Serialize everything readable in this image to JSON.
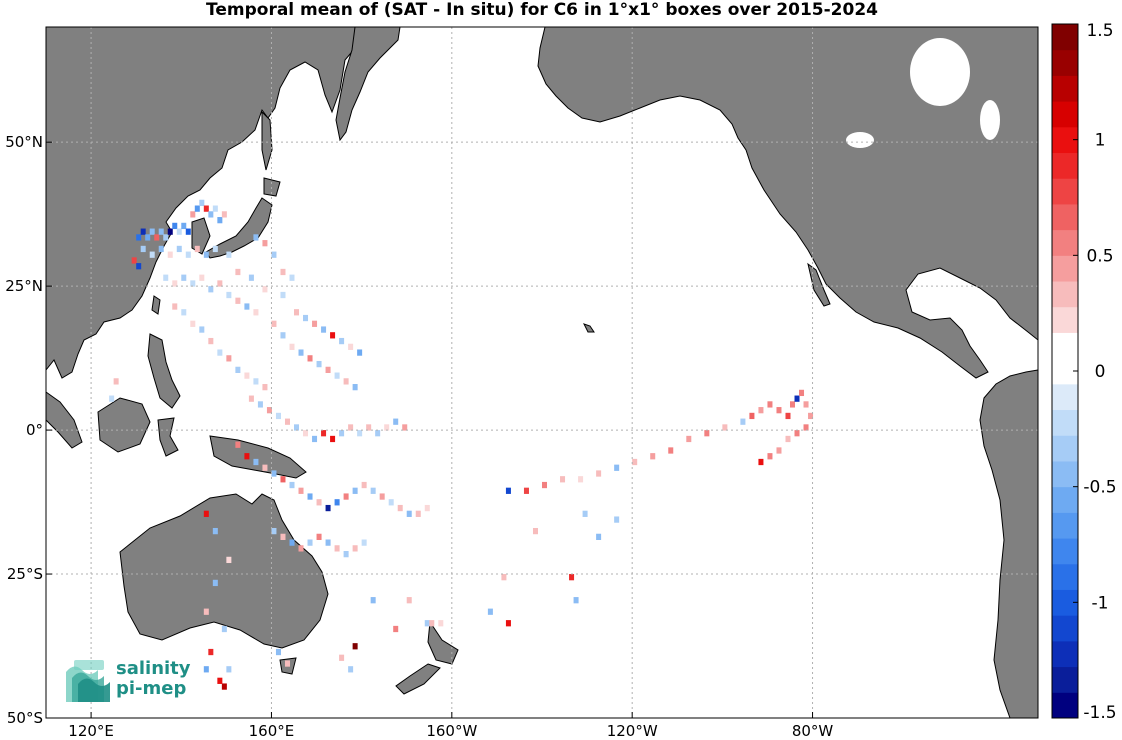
{
  "title": "Temporal mean of (SAT - In situ) for C6 in 1°x1° boxes over 2015-2024",
  "map": {
    "projection": "equirectangular",
    "lon_range": [
      110,
      330
    ],
    "lat_range": [
      -50,
      70
    ],
    "land_color": "#808080",
    "ocean_color": "#ffffff",
    "grid": "dotted"
  },
  "x_ticks": [
    {
      "lon": 120,
      "label": "120°E"
    },
    {
      "lon": 160,
      "label": "160°E"
    },
    {
      "lon": 200,
      "label": "160°W"
    },
    {
      "lon": 240,
      "label": "120°W"
    },
    {
      "lon": 280,
      "label": "80°W"
    }
  ],
  "y_ticks": [
    {
      "lat": 50,
      "label": "50°N"
    },
    {
      "lat": 25,
      "label": "25°N"
    },
    {
      "lat": 0,
      "label": "0°"
    },
    {
      "lat": -25,
      "label": "25°S"
    },
    {
      "lat": -50,
      "label": "50°S"
    }
  ],
  "colorbar": {
    "vmin": -1.5,
    "vmax": 1.5,
    "ticks": [
      {
        "value": 1.5,
        "label": "1.5"
      },
      {
        "value": 1,
        "label": "1"
      },
      {
        "value": 0.5,
        "label": "0.5"
      },
      {
        "value": 0,
        "label": "0"
      },
      {
        "value": -0.5,
        "label": "-0.5"
      },
      {
        "value": -1,
        "label": "-1"
      },
      {
        "value": -1.5,
        "label": "-1.5"
      }
    ],
    "colors": [
      "#00007f",
      "#0a1e9a",
      "#0d2fb8",
      "#1247d0",
      "#1a5ce0",
      "#2a71e8",
      "#3f86ee",
      "#5699f0",
      "#6eaaf2",
      "#8bbcf4",
      "#a6ccf6",
      "#c1dcf8",
      "#dceaf9",
      "#ffffff",
      "#ffffff",
      "#fad8d8",
      "#f7bcbc",
      "#f59e9e",
      "#f28080",
      "#ef6262",
      "#ee4444",
      "#ec2828",
      "#ea0f0f",
      "#d70000",
      "#b80000",
      "#990000",
      "#800000"
    ]
  },
  "chart_data": {
    "type": "heatmap",
    "title": "Temporal mean of (SAT - In situ) for C6 in 1°x1° boxes over 2015-2024",
    "units": "",
    "grid_cells": [
      {
        "lon": 130,
        "lat": 33,
        "v": -0.9
      },
      {
        "lon": 131,
        "lat": 34,
        "v": -1.2
      },
      {
        "lon": 132,
        "lat": 33,
        "v": -0.6
      },
      {
        "lon": 133,
        "lat": 34,
        "v": -0.4
      },
      {
        "lon": 134,
        "lat": 33,
        "v": 0.7
      },
      {
        "lon": 135,
        "lat": 34,
        "v": -0.5
      },
      {
        "lon": 136,
        "lat": 33,
        "v": -0.3
      },
      {
        "lon": 137,
        "lat": 34,
        "v": -1.4
      },
      {
        "lon": 138,
        "lat": 35,
        "v": -0.8
      },
      {
        "lon": 139,
        "lat": 34,
        "v": -0.2
      },
      {
        "lon": 140,
        "lat": 35,
        "v": -0.6
      },
      {
        "lon": 141,
        "lat": 34,
        "v": -1.0
      },
      {
        "lon": 142,
        "lat": 37,
        "v": 0.4
      },
      {
        "lon": 143,
        "lat": 38,
        "v": -0.7
      },
      {
        "lon": 144,
        "lat": 39,
        "v": -0.3
      },
      {
        "lon": 145,
        "lat": 38,
        "v": 0.9
      },
      {
        "lon": 146,
        "lat": 37,
        "v": -0.5
      },
      {
        "lon": 147,
        "lat": 38,
        "v": -0.2
      },
      {
        "lon": 148,
        "lat": 36,
        "v": -0.6
      },
      {
        "lon": 149,
        "lat": 37,
        "v": 0.3
      },
      {
        "lon": 131,
        "lat": 31,
        "v": -0.3
      },
      {
        "lon": 133,
        "lat": 30,
        "v": -0.2
      },
      {
        "lon": 135,
        "lat": 31,
        "v": -0.4
      },
      {
        "lon": 137,
        "lat": 30,
        "v": 0.2
      },
      {
        "lon": 139,
        "lat": 31,
        "v": -0.3
      },
      {
        "lon": 141,
        "lat": 30,
        "v": -0.2
      },
      {
        "lon": 143,
        "lat": 31,
        "v": 0.3
      },
      {
        "lon": 145,
        "lat": 30,
        "v": -0.4
      },
      {
        "lon": 147,
        "lat": 31,
        "v": -0.2
      },
      {
        "lon": 129,
        "lat": 29,
        "v": 0.8
      },
      {
        "lon": 130,
        "lat": 28,
        "v": -1.1
      },
      {
        "lon": 136,
        "lat": 26,
        "v": -0.2
      },
      {
        "lon": 138,
        "lat": 25,
        "v": 0.2
      },
      {
        "lon": 140,
        "lat": 26,
        "v": -0.3
      },
      {
        "lon": 142,
        "lat": 25,
        "v": -0.2
      },
      {
        "lon": 144,
        "lat": 26,
        "v": 0.2
      },
      {
        "lon": 146,
        "lat": 24,
        "v": -0.3
      },
      {
        "lon": 148,
        "lat": 25,
        "v": 0.3
      },
      {
        "lon": 150,
        "lat": 23,
        "v": -0.2
      },
      {
        "lon": 152,
        "lat": 22,
        "v": 0.3
      },
      {
        "lon": 154,
        "lat": 21,
        "v": -0.4
      },
      {
        "lon": 156,
        "lat": 20,
        "v": 0.2
      },
      {
        "lon": 138,
        "lat": 21,
        "v": 0.3
      },
      {
        "lon": 140,
        "lat": 20,
        "v": -0.2
      },
      {
        "lon": 142,
        "lat": 18,
        "v": 0.2
      },
      {
        "lon": 144,
        "lat": 17,
        "v": -0.3
      },
      {
        "lon": 146,
        "lat": 15,
        "v": 0.3
      },
      {
        "lon": 148,
        "lat": 13,
        "v": -0.2
      },
      {
        "lon": 150,
        "lat": 12,
        "v": 0.4
      },
      {
        "lon": 152,
        "lat": 10,
        "v": -0.3
      },
      {
        "lon": 154,
        "lat": 9,
        "v": 0.2
      },
      {
        "lon": 156,
        "lat": 8,
        "v": -0.2
      },
      {
        "lon": 158,
        "lat": 7,
        "v": 0.3
      },
      {
        "lon": 160,
        "lat": 18,
        "v": 0.3
      },
      {
        "lon": 162,
        "lat": 16,
        "v": -0.3
      },
      {
        "lon": 164,
        "lat": 14,
        "v": 0.2
      },
      {
        "lon": 166,
        "lat": 13,
        "v": -0.4
      },
      {
        "lon": 168,
        "lat": 12,
        "v": 0.5
      },
      {
        "lon": 170,
        "lat": 11,
        "v": -0.3
      },
      {
        "lon": 172,
        "lat": 10,
        "v": 0.4
      },
      {
        "lon": 174,
        "lat": 9,
        "v": -0.2
      },
      {
        "lon": 176,
        "lat": 8,
        "v": 0.3
      },
      {
        "lon": 178,
        "lat": 7,
        "v": -0.4
      },
      {
        "lon": 165,
        "lat": 20,
        "v": 0.3
      },
      {
        "lon": 167,
        "lat": 19,
        "v": -0.3
      },
      {
        "lon": 169,
        "lat": 18,
        "v": 0.4
      },
      {
        "lon": 171,
        "lat": 17,
        "v": -0.5
      },
      {
        "lon": 173,
        "lat": 16,
        "v": 1.0
      },
      {
        "lon": 175,
        "lat": 15,
        "v": -0.3
      },
      {
        "lon": 177,
        "lat": 14,
        "v": 0.2
      },
      {
        "lon": 179,
        "lat": 13,
        "v": -0.6
      },
      {
        "lon": 155,
        "lat": 5,
        "v": 0.3
      },
      {
        "lon": 157,
        "lat": 4,
        "v": -0.3
      },
      {
        "lon": 159,
        "lat": 3,
        "v": 0.4
      },
      {
        "lon": 161,
        "lat": 2,
        "v": -0.2
      },
      {
        "lon": 163,
        "lat": 1,
        "v": 0.3
      },
      {
        "lon": 165,
        "lat": 0,
        "v": -0.3
      },
      {
        "lon": 167,
        "lat": -1,
        "v": 0.2
      },
      {
        "lon": 169,
        "lat": -2,
        "v": -0.4
      },
      {
        "lon": 171,
        "lat": -1,
        "v": 0.9
      },
      {
        "lon": 173,
        "lat": -2,
        "v": 1.0
      },
      {
        "lon": 175,
        "lat": -1,
        "v": -0.3
      },
      {
        "lon": 177,
        "lat": 0,
        "v": 0.3
      },
      {
        "lon": 179,
        "lat": -1,
        "v": -0.2
      },
      {
        "lon": 181,
        "lat": 0,
        "v": 0.3
      },
      {
        "lon": 183,
        "lat": -1,
        "v": -0.3
      },
      {
        "lon": 185,
        "lat": 0,
        "v": 0.2
      },
      {
        "lon": 187,
        "lat": 1,
        "v": -0.4
      },
      {
        "lon": 189,
        "lat": 0,
        "v": 0.4
      },
      {
        "lon": 152,
        "lat": -3,
        "v": 0.6
      },
      {
        "lon": 154,
        "lat": -5,
        "v": 1.0
      },
      {
        "lon": 156,
        "lat": -6,
        "v": -0.4
      },
      {
        "lon": 158,
        "lat": -7,
        "v": 0.3
      },
      {
        "lon": 160,
        "lat": -8,
        "v": -0.5
      },
      {
        "lon": 162,
        "lat": -9,
        "v": 0.7
      },
      {
        "lon": 164,
        "lat": -10,
        "v": -0.3
      },
      {
        "lon": 166,
        "lat": -11,
        "v": 0.4
      },
      {
        "lon": 168,
        "lat": -12,
        "v": -0.6
      },
      {
        "lon": 170,
        "lat": -13,
        "v": 0.3
      },
      {
        "lon": 172,
        "lat": -14,
        "v": -1.3
      },
      {
        "lon": 174,
        "lat": -13,
        "v": -0.8
      },
      {
        "lon": 176,
        "lat": -12,
        "v": 0.5
      },
      {
        "lon": 178,
        "lat": -11,
        "v": -0.4
      },
      {
        "lon": 180,
        "lat": -10,
        "v": 0.3
      },
      {
        "lon": 182,
        "lat": -11,
        "v": -0.3
      },
      {
        "lon": 184,
        "lat": -12,
        "v": 0.4
      },
      {
        "lon": 186,
        "lat": -13,
        "v": -0.2
      },
      {
        "lon": 188,
        "lat": -14,
        "v": 0.3
      },
      {
        "lon": 190,
        "lat": -15,
        "v": -0.4
      },
      {
        "lon": 192,
        "lat": -15,
        "v": 0.3
      },
      {
        "lon": 194,
        "lat": -14,
        "v": 0.2
      },
      {
        "lon": 160,
        "lat": -18,
        "v": -0.3
      },
      {
        "lon": 162,
        "lat": -19,
        "v": 0.3
      },
      {
        "lon": 164,
        "lat": -20,
        "v": -0.6
      },
      {
        "lon": 166,
        "lat": -21,
        "v": 0.4
      },
      {
        "lon": 168,
        "lat": -20,
        "v": -0.3
      },
      {
        "lon": 170,
        "lat": -19,
        "v": 0.5
      },
      {
        "lon": 172,
        "lat": -20,
        "v": -0.4
      },
      {
        "lon": 174,
        "lat": -21,
        "v": 0.3
      },
      {
        "lon": 176,
        "lat": -22,
        "v": -0.3
      },
      {
        "lon": 178,
        "lat": -21,
        "v": 0.3
      },
      {
        "lon": 180,
        "lat": -20,
        "v": -0.2
      },
      {
        "lon": 145,
        "lat": -15,
        "v": 1.0
      },
      {
        "lon": 147,
        "lat": -18,
        "v": -0.4
      },
      {
        "lon": 150,
        "lat": -23,
        "v": 0.2
      },
      {
        "lon": 147,
        "lat": -27,
        "v": -0.5
      },
      {
        "lon": 145,
        "lat": -32,
        "v": 0.3
      },
      {
        "lon": 149,
        "lat": -35,
        "v": -0.3
      },
      {
        "lon": 146,
        "lat": -39,
        "v": 0.9
      },
      {
        "lon": 145,
        "lat": -42,
        "v": -0.6
      },
      {
        "lon": 148,
        "lat": -44,
        "v": 1.0
      },
      {
        "lon": 149,
        "lat": -45,
        "v": 1.2
      },
      {
        "lon": 150,
        "lat": -42,
        "v": -0.3
      },
      {
        "lon": 161,
        "lat": -39,
        "v": -0.4
      },
      {
        "lon": 163,
        "lat": -41,
        "v": 0.3
      },
      {
        "lon": 175,
        "lat": -40,
        "v": 0.3
      },
      {
        "lon": 177,
        "lat": -42,
        "v": -0.3
      },
      {
        "lon": 178,
        "lat": -38,
        "v": 1.4
      },
      {
        "lon": 182,
        "lat": -30,
        "v": -0.5
      },
      {
        "lon": 187,
        "lat": -35,
        "v": 0.6
      },
      {
        "lon": 194,
        "lat": -34,
        "v": -0.3
      },
      {
        "lon": 195,
        "lat": -34,
        "v": 0.3
      },
      {
        "lon": 197,
        "lat": -34,
        "v": 0.2
      },
      {
        "lon": 208,
        "lat": -32,
        "v": -0.4
      },
      {
        "lon": 212,
        "lat": -34,
        "v": 1.0
      },
      {
        "lon": 211,
        "lat": -26,
        "v": 0.3
      },
      {
        "lon": 226,
        "lat": -26,
        "v": 0.9
      },
      {
        "lon": 227,
        "lat": -30,
        "v": -0.5
      },
      {
        "lon": 190,
        "lat": -30,
        "v": 0.3
      },
      {
        "lon": 212,
        "lat": -11,
        "v": -1.1
      },
      {
        "lon": 216,
        "lat": -11,
        "v": 0.8
      },
      {
        "lon": 220,
        "lat": -10,
        "v": 0.5
      },
      {
        "lon": 224,
        "lat": -9,
        "v": 0.3
      },
      {
        "lon": 228,
        "lat": -9,
        "v": 0.2
      },
      {
        "lon": 232,
        "lat": -8,
        "v": 0.3
      },
      {
        "lon": 236,
        "lat": -7,
        "v": -0.4
      },
      {
        "lon": 240,
        "lat": -6,
        "v": 0.3
      },
      {
        "lon": 244,
        "lat": -5,
        "v": 0.4
      },
      {
        "lon": 248,
        "lat": -4,
        "v": 0.5
      },
      {
        "lon": 252,
        "lat": -2,
        "v": 0.4
      },
      {
        "lon": 256,
        "lat": -1,
        "v": 0.6
      },
      {
        "lon": 260,
        "lat": 0,
        "v": 0.3
      },
      {
        "lon": 264,
        "lat": 1,
        "v": -0.3
      },
      {
        "lon": 266,
        "lat": 2,
        "v": 0.7
      },
      {
        "lon": 268,
        "lat": 3,
        "v": 0.4
      },
      {
        "lon": 270,
        "lat": 4,
        "v": 0.5
      },
      {
        "lon": 272,
        "lat": 3,
        "v": 0.6
      },
      {
        "lon": 274,
        "lat": 2,
        "v": 0.8
      },
      {
        "lon": 275,
        "lat": 4,
        "v": 0.6
      },
      {
        "lon": 276,
        "lat": 5,
        "v": -1.2
      },
      {
        "lon": 277,
        "lat": 6,
        "v": 0.5
      },
      {
        "lon": 278,
        "lat": 4,
        "v": 0.4
      },
      {
        "lon": 268,
        "lat": -6,
        "v": 1.0
      },
      {
        "lon": 270,
        "lat": -5,
        "v": 0.6
      },
      {
        "lon": 272,
        "lat": -4,
        "v": 0.4
      },
      {
        "lon": 274,
        "lat": -2,
        "v": 0.3
      },
      {
        "lon": 276,
        "lat": -1,
        "v": 0.6
      },
      {
        "lon": 278,
        "lat": 0,
        "v": 0.5
      },
      {
        "lon": 279,
        "lat": 2,
        "v": 0.4
      },
      {
        "lon": 236,
        "lat": -16,
        "v": -0.3
      },
      {
        "lon": 232,
        "lat": -19,
        "v": -0.4
      },
      {
        "lon": 218,
        "lat": -18,
        "v": 0.3
      },
      {
        "lon": 229,
        "lat": -15,
        "v": -0.3
      },
      {
        "lon": 124,
        "lat": 5,
        "v": -0.2
      },
      {
        "lon": 125,
        "lat": 8,
        "v": 0.3
      },
      {
        "lon": 150,
        "lat": 30,
        "v": -0.2
      },
      {
        "lon": 152,
        "lat": 27,
        "v": 0.3
      },
      {
        "lon": 155,
        "lat": 26,
        "v": -0.3
      },
      {
        "lon": 158,
        "lat": 24,
        "v": 0.2
      },
      {
        "lon": 162,
        "lat": 23,
        "v": -0.2
      },
      {
        "lon": 156,
        "lat": 33,
        "v": -0.4
      },
      {
        "lon": 158,
        "lat": 32,
        "v": 0.4
      },
      {
        "lon": 160,
        "lat": 30,
        "v": -0.3
      },
      {
        "lon": 162,
        "lat": 27,
        "v": 0.3
      },
      {
        "lon": 164,
        "lat": 26,
        "v": -0.2
      }
    ]
  }
}
